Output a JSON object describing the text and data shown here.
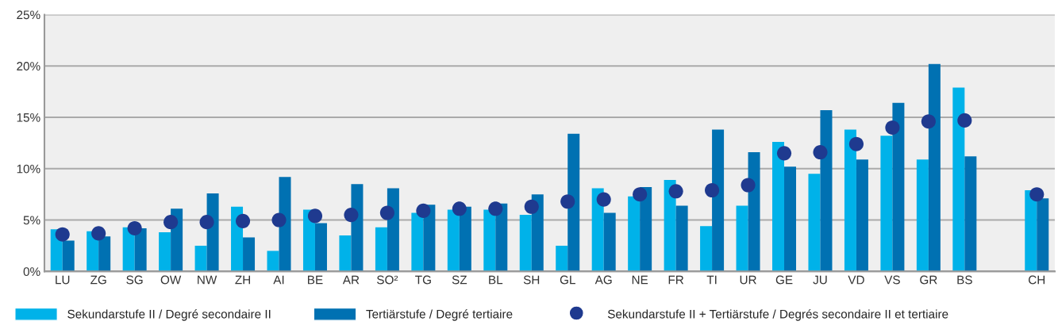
{
  "chart_data": {
    "type": "bar",
    "categories": [
      "LU",
      "ZG",
      "SG",
      "OW",
      "NW",
      "ZH",
      "AI",
      "BE",
      "AR",
      "SO²",
      "TG",
      "SZ",
      "BL",
      "SH",
      "GL",
      "AG",
      "NE",
      "FR",
      "TI",
      "UR",
      "GE",
      "JU",
      "VD",
      "VS",
      "GR",
      "BS",
      null,
      "CH"
    ],
    "series": [
      {
        "name": "Sekundarstufe II / Degré secondaire II",
        "color": "#00b2e9",
        "values": [
          4.1,
          3.9,
          4.3,
          3.8,
          2.5,
          6.3,
          2.0,
          6.0,
          3.5,
          4.3,
          5.7,
          6.0,
          6.0,
          5.5,
          2.5,
          8.1,
          7.3,
          8.9,
          4.4,
          6.4,
          12.6,
          9.5,
          13.8,
          13.2,
          10.9,
          17.9,
          null,
          7.9
        ]
      },
      {
        "name": "Tertiärstufe / Degré tertiaire",
        "color": "#0071b2",
        "values": [
          3.0,
          3.4,
          4.2,
          6.1,
          7.6,
          3.3,
          9.2,
          4.7,
          8.5,
          8.1,
          6.5,
          6.3,
          6.6,
          7.5,
          13.4,
          5.7,
          8.2,
          6.4,
          13.8,
          11.6,
          10.2,
          15.7,
          10.9,
          16.4,
          20.2,
          11.2,
          null,
          7.1
        ]
      },
      {
        "name": "Sekundarstufe II + Tertiärstufe / Degrés secondaire II et tertiaire",
        "type": "scatter",
        "color": "#1f3a8f",
        "values": [
          3.6,
          3.7,
          4.2,
          4.8,
          4.8,
          4.9,
          5.0,
          5.4,
          5.5,
          5.7,
          5.9,
          6.1,
          6.1,
          6.3,
          6.8,
          7.0,
          7.5,
          7.8,
          7.9,
          8.4,
          11.5,
          11.6,
          12.4,
          14.0,
          14.6,
          14.7,
          null,
          7.5
        ]
      }
    ],
    "ylim": [
      0,
      25
    ],
    "yticks": [
      {
        "value": 0,
        "label": "0%"
      },
      {
        "value": 5,
        "label": "5%"
      },
      {
        "value": 10,
        "label": "10%"
      },
      {
        "value": 15,
        "label": "15%"
      },
      {
        "value": 20,
        "label": "20%"
      },
      {
        "value": 25,
        "label": "25%"
      }
    ],
    "grid": "y",
    "legend": "bottom",
    "marker": "circle"
  }
}
